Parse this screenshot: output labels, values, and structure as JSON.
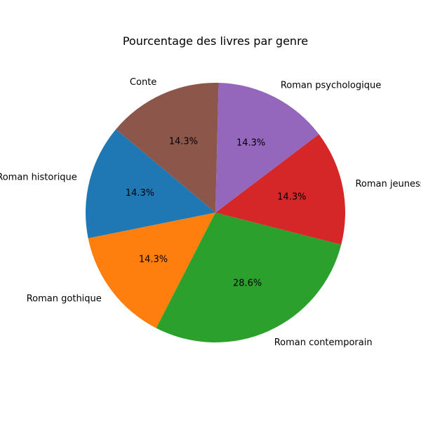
{
  "chart_data": {
    "type": "pie",
    "title": "Pourcentage des livres par genre",
    "start_angle_deg": 140,
    "direction": "counterclockwise",
    "slices": [
      {
        "label": "Roman historique",
        "value": 14.3,
        "pct_label": "14.3%",
        "color": "#1f77b4"
      },
      {
        "label": "Roman gothique",
        "value": 14.3,
        "pct_label": "14.3%",
        "color": "#ff7f0e"
      },
      {
        "label": "Roman contemporain",
        "value": 28.6,
        "pct_label": "28.6%",
        "color": "#2ca02c"
      },
      {
        "label": "Roman jeunesse",
        "value": 14.3,
        "pct_label": "14.3%",
        "color": "#d62728"
      },
      {
        "label": "Roman psychologique",
        "value": 14.3,
        "pct_label": "14.3%",
        "color": "#9467bd"
      },
      {
        "label": "Conte",
        "value": 14.3,
        "pct_label": "14.3%",
        "color": "#8c564b"
      }
    ]
  }
}
